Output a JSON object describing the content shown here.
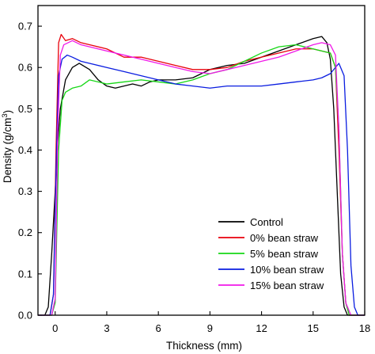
{
  "chart_data": {
    "type": "line",
    "xlabel": "Thickness (mm)",
    "ylabel_main": "Density (g/cm",
    "ylabel_sup": "3",
    "ylabel_close": ")",
    "xlim": [
      -1,
      18
    ],
    "ylim": [
      0.0,
      0.75
    ],
    "x_ticks": [
      0,
      3,
      6,
      9,
      12,
      15,
      18
    ],
    "y_ticks": [
      0.0,
      0.1,
      0.2,
      0.3,
      0.4,
      0.5,
      0.6,
      0.7
    ],
    "x_tick_labels": [
      "0",
      "3",
      "6",
      "9",
      "12",
      "15",
      "18"
    ],
    "y_tick_labels": [
      "0.0",
      "0.1",
      "0.2",
      "0.3",
      "0.4",
      "0.5",
      "0.6",
      "0.7"
    ],
    "grid": false,
    "legend_position": "bottom-right",
    "series": [
      {
        "name": "Control",
        "color": "#000000",
        "x": [
          -1.0,
          -0.6,
          -0.4,
          -0.2,
          0.0,
          0.15,
          0.3,
          0.6,
          1.0,
          1.4,
          2.0,
          2.5,
          3.0,
          3.5,
          4.0,
          4.5,
          5.0,
          5.5,
          6.0,
          7.0,
          8.0,
          8.5,
          9.0,
          10.0,
          11.0,
          12.0,
          13.0,
          14.0,
          15.0,
          15.5,
          15.8,
          16.0,
          16.2,
          16.4,
          16.6,
          16.8,
          17.0,
          17.3,
          18.0
        ],
        "y": [
          0.0,
          0.0,
          0.02,
          0.15,
          0.3,
          0.42,
          0.5,
          0.57,
          0.6,
          0.61,
          0.595,
          0.57,
          0.555,
          0.55,
          0.555,
          0.56,
          0.555,
          0.565,
          0.57,
          0.57,
          0.575,
          0.585,
          0.595,
          0.605,
          0.61,
          0.625,
          0.64,
          0.655,
          0.67,
          0.675,
          0.66,
          0.62,
          0.5,
          0.3,
          0.1,
          0.02,
          0.0,
          0.0,
          0.0
        ]
      },
      {
        "name": "0% bean straw",
        "color": "#e8000b",
        "x": [
          -1.0,
          -0.3,
          -0.1,
          0.05,
          0.2,
          0.35,
          0.6,
          1.0,
          1.5,
          2.0,
          3.0,
          4.0,
          5.0,
          6.0,
          7.0,
          8.0,
          9.0,
          10.0,
          11.0,
          12.0,
          13.0,
          14.0,
          15.0,
          15.5,
          16.0,
          16.3,
          16.5,
          16.7,
          16.9,
          17.1,
          17.4,
          18.0
        ],
        "y": [
          0.0,
          0.0,
          0.05,
          0.4,
          0.66,
          0.68,
          0.665,
          0.67,
          0.66,
          0.655,
          0.645,
          0.625,
          0.625,
          0.615,
          0.605,
          0.595,
          0.595,
          0.6,
          0.615,
          0.625,
          0.635,
          0.645,
          0.645,
          0.64,
          0.635,
          0.6,
          0.4,
          0.15,
          0.03,
          0.0,
          0.0,
          0.0
        ]
      },
      {
        "name": "5% bean straw",
        "color": "#16d716",
        "x": [
          -1.0,
          -0.2,
          0.0,
          0.2,
          0.4,
          0.6,
          1.0,
          1.5,
          2.0,
          3.0,
          4.0,
          5.0,
          6.0,
          7.0,
          8.0,
          9.0,
          10.0,
          11.0,
          12.0,
          13.0,
          14.0,
          15.0,
          15.5,
          16.0,
          16.3,
          16.5,
          16.7,
          16.9,
          17.1,
          17.4,
          18.0
        ],
        "y": [
          0.0,
          0.0,
          0.03,
          0.4,
          0.52,
          0.54,
          0.55,
          0.555,
          0.57,
          0.56,
          0.565,
          0.57,
          0.565,
          0.56,
          0.57,
          0.585,
          0.595,
          0.615,
          0.635,
          0.65,
          0.655,
          0.645,
          0.64,
          0.635,
          0.6,
          0.45,
          0.15,
          0.03,
          0.0,
          0.0,
          0.0
        ]
      },
      {
        "name": "10% bean straw",
        "color": "#0a1de0",
        "x": [
          -1.0,
          -0.3,
          -0.1,
          0.05,
          0.2,
          0.4,
          0.7,
          1.0,
          1.5,
          2.0,
          3.0,
          4.0,
          5.0,
          6.0,
          7.0,
          8.0,
          9.0,
          10.0,
          11.0,
          12.0,
          13.0,
          14.0,
          15.0,
          15.5,
          16.0,
          16.5,
          16.8,
          17.0,
          17.2,
          17.4,
          17.6,
          18.0
        ],
        "y": [
          0.0,
          0.0,
          0.05,
          0.35,
          0.58,
          0.62,
          0.63,
          0.625,
          0.615,
          0.61,
          0.6,
          0.59,
          0.58,
          0.57,
          0.56,
          0.555,
          0.55,
          0.555,
          0.555,
          0.555,
          0.56,
          0.565,
          0.57,
          0.575,
          0.585,
          0.61,
          0.58,
          0.4,
          0.12,
          0.02,
          0.0,
          0.0
        ]
      },
      {
        "name": "15% bean straw",
        "color": "#f018e8",
        "x": [
          -1.0,
          -0.2,
          0.0,
          0.15,
          0.3,
          0.5,
          1.0,
          1.5,
          2.0,
          3.0,
          4.0,
          5.0,
          6.0,
          7.0,
          8.0,
          9.0,
          10.0,
          11.0,
          12.0,
          13.0,
          14.0,
          15.0,
          15.5,
          16.0,
          16.3,
          16.5,
          16.7,
          16.9,
          17.2,
          18.0
        ],
        "y": [
          0.0,
          0.0,
          0.04,
          0.45,
          0.63,
          0.655,
          0.665,
          0.655,
          0.65,
          0.64,
          0.63,
          0.62,
          0.61,
          0.6,
          0.59,
          0.585,
          0.595,
          0.605,
          0.615,
          0.625,
          0.64,
          0.655,
          0.66,
          0.655,
          0.63,
          0.45,
          0.15,
          0.03,
          0.0,
          0.0
        ]
      }
    ]
  }
}
